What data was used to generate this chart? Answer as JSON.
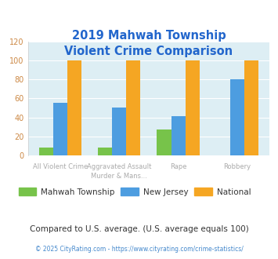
{
  "title": "2019 Mahwah Township\nViolent Crime Comparison",
  "cat_labels_line1": [
    "All Violent Crime",
    "Aggravated Assault",
    "Rape",
    "Robbery"
  ],
  "cat_labels_line2": [
    "",
    "Murder & Mans...",
    "",
    ""
  ],
  "mahwah": [
    8,
    8,
    27,
    0
  ],
  "nj": [
    55,
    50,
    41,
    80
  ],
  "national": [
    100,
    100,
    100,
    100
  ],
  "mahwah_color": "#77c34a",
  "nj_color": "#4d9de0",
  "national_color": "#f5a623",
  "bg_color": "#ddeef4",
  "title_color": "#2266cc",
  "xlabel_color": "#aaaaaa",
  "ytick_color": "#cc8844",
  "ylim": [
    0,
    120
  ],
  "yticks": [
    0,
    20,
    40,
    60,
    80,
    100,
    120
  ],
  "legend_labels": [
    "Mahwah Township",
    "New Jersey",
    "National"
  ],
  "legend_text_color": "#333333",
  "footnote1": "Compared to U.S. average. (U.S. average equals 100)",
  "footnote1_color": "#333333",
  "footnote2": "© 2025 CityRating.com - https://www.cityrating.com/crime-statistics/",
  "footnote2_color": "#4488cc",
  "grid_color": "#ffffff",
  "bar_width": 0.24
}
